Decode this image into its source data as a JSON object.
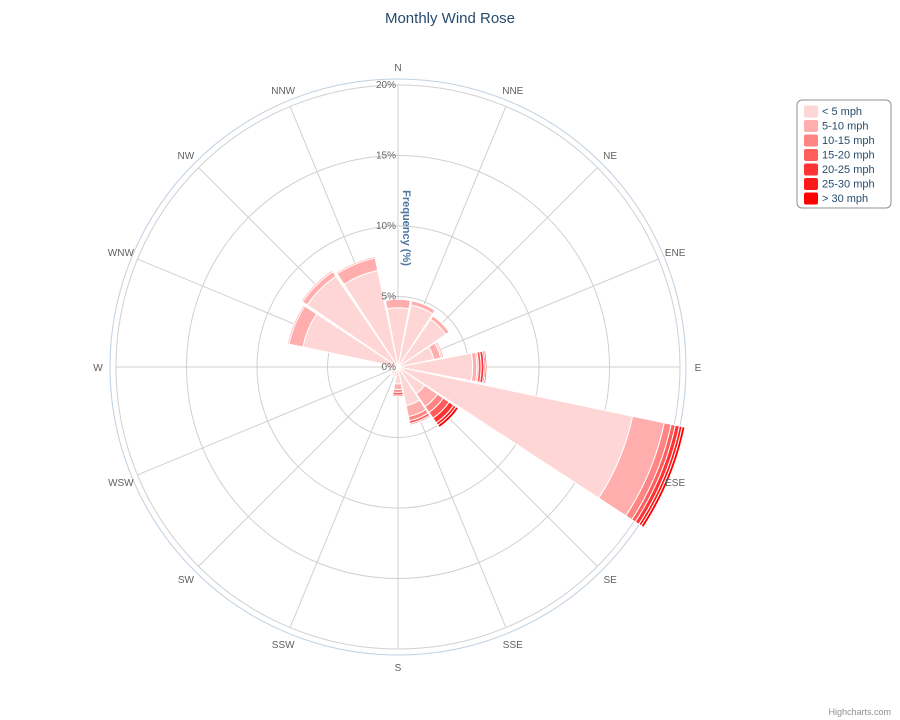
{
  "chart_data": {
    "type": "bar",
    "subtype": "stacked-polar-wind-rose",
    "title": "Monthly Wind Rose",
    "ylabel": "Frequency (%)",
    "ylim": [
      0,
      20
    ],
    "y_ticks": [
      "0%",
      "5%",
      "10%",
      "15%",
      "20%"
    ],
    "categories": [
      "N",
      "NNE",
      "NE",
      "ENE",
      "E",
      "ESE",
      "SE",
      "SSE",
      "S",
      "SSW",
      "SW",
      "WSW",
      "W",
      "WNW",
      "NW",
      "NNW"
    ],
    "grid": true,
    "legend_position": "top-right",
    "series": [
      {
        "name": "< 5 mph",
        "color": "#ffd6d6",
        "values": [
          4.2,
          4.5,
          4.1,
          2.6,
          5.3,
          17.0,
          2.3,
          2.8,
          1.2,
          0.6,
          0.6,
          0.3,
          0.8,
          6.9,
          7.8,
          7.0
        ]
      },
      {
        "name": "5-10 mph",
        "color": "#ffadad",
        "values": [
          0.6,
          0.3,
          0.3,
          0.5,
          0.3,
          2.3,
          1.1,
          0.8,
          0.4,
          0.1,
          0.1,
          0.1,
          0.1,
          1.0,
          0.4,
          0.9
        ]
      },
      {
        "name": "10-15 mph",
        "color": "#ff8585",
        "values": [
          0.0,
          0.0,
          0.05,
          0.1,
          0.1,
          0.5,
          0.5,
          0.3,
          0.2,
          0.05,
          0.05,
          0.0,
          0.05,
          0.1,
          0.1,
          0.1
        ]
      },
      {
        "name": "15-20 mph",
        "color": "#ff5c5c",
        "values": [
          0.0,
          0.0,
          0.0,
          0.1,
          0.2,
          0.3,
          0.5,
          0.2,
          0.2,
          0.0,
          0.0,
          0.0,
          0.0,
          0.0,
          0.0,
          0.0
        ]
      },
      {
        "name": "20-25 mph",
        "color": "#ff3333",
        "values": [
          0.0,
          0.0,
          0.0,
          0.0,
          0.2,
          0.3,
          0.4,
          0.1,
          0.1,
          0.0,
          0.0,
          0.0,
          0.0,
          0.0,
          0.0,
          0.0
        ]
      },
      {
        "name": "25-30 mph",
        "color": "#ff1a1a",
        "values": [
          0.0,
          0.0,
          0.0,
          0.0,
          0.1,
          0.2,
          0.2,
          0.0,
          0.0,
          0.0,
          0.0,
          0.0,
          0.0,
          0.0,
          0.0,
          0.0
        ]
      },
      {
        "name": "> 30 mph",
        "color": "#ff0000",
        "values": [
          0.0,
          0.0,
          0.0,
          0.0,
          0.1,
          0.2,
          0.2,
          0.0,
          0.0,
          0.0,
          0.0,
          0.0,
          0.0,
          0.0,
          0.0,
          0.0
        ]
      }
    ],
    "credits": "Highcharts.com"
  }
}
